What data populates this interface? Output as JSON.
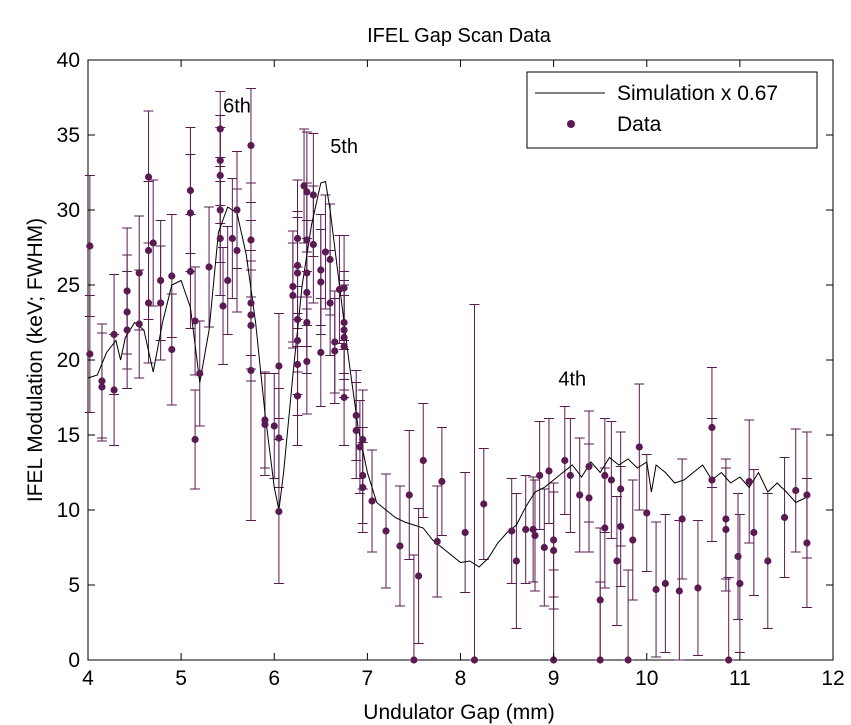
{
  "chart_data": {
    "type": "scatter",
    "title": "IFEL Gap Scan Data",
    "xlabel": "Undulator Gap (mm)",
    "ylabel": "IFEL Modulation (keV; FWHM)",
    "xlim": [
      4,
      12
    ],
    "ylim": [
      0,
      40
    ],
    "xticks": [
      4,
      5,
      6,
      7,
      8,
      9,
      10,
      11,
      12
    ],
    "yticks": [
      0,
      5,
      10,
      15,
      20,
      25,
      30,
      35,
      40
    ],
    "grid": false,
    "legend_position": "top-right",
    "colors": {
      "data": "#5a1a52",
      "simulation": "#000000",
      "errorbar": "#5a1a52"
    },
    "annotations": [
      {
        "text": "6th",
        "x": 5.6,
        "y": 36.5
      },
      {
        "text": "5th",
        "x": 6.75,
        "y": 33.8
      },
      {
        "text": "4th",
        "x": 9.2,
        "y": 18.3
      }
    ],
    "series": [
      {
        "name": "Simulation x 0.67",
        "kind": "line",
        "points": [
          [
            4.0,
            18.8
          ],
          [
            4.1,
            19.0
          ],
          [
            4.2,
            20.5
          ],
          [
            4.3,
            21.3
          ],
          [
            4.35,
            20.0
          ],
          [
            4.4,
            21.5
          ],
          [
            4.5,
            22.5
          ],
          [
            4.6,
            22.0
          ],
          [
            4.7,
            19.2
          ],
          [
            4.8,
            22.5
          ],
          [
            4.9,
            25.0
          ],
          [
            5.0,
            25.3
          ],
          [
            5.1,
            23.5
          ],
          [
            5.2,
            18.5
          ],
          [
            5.3,
            22.0
          ],
          [
            5.4,
            28.5
          ],
          [
            5.5,
            30.2
          ],
          [
            5.6,
            29.8
          ],
          [
            5.7,
            27.0
          ],
          [
            5.8,
            22.5
          ],
          [
            5.9,
            16.5
          ],
          [
            6.0,
            11.5
          ],
          [
            6.05,
            10.0
          ],
          [
            6.1,
            12.5
          ],
          [
            6.2,
            19.0
          ],
          [
            6.3,
            25.0
          ],
          [
            6.4,
            29.0
          ],
          [
            6.5,
            31.8
          ],
          [
            6.55,
            31.9
          ],
          [
            6.6,
            30.0
          ],
          [
            6.7,
            25.0
          ],
          [
            6.8,
            20.0
          ],
          [
            6.9,
            15.5
          ],
          [
            7.0,
            12.5
          ],
          [
            7.1,
            10.5
          ],
          [
            7.2,
            10.0
          ],
          [
            7.3,
            9.5
          ],
          [
            7.4,
            9.2
          ],
          [
            7.5,
            9.0
          ],
          [
            7.6,
            8.8
          ],
          [
            7.7,
            8.0
          ],
          [
            7.8,
            7.5
          ],
          [
            7.9,
            7.0
          ],
          [
            8.0,
            6.5
          ],
          [
            8.1,
            6.6
          ],
          [
            8.2,
            6.2
          ],
          [
            8.3,
            6.8
          ],
          [
            8.4,
            7.8
          ],
          [
            8.5,
            8.5
          ],
          [
            8.6,
            9.0
          ],
          [
            8.7,
            10.2
          ],
          [
            8.8,
            11.2
          ],
          [
            8.9,
            11.5
          ],
          [
            9.0,
            12.0
          ],
          [
            9.1,
            12.5
          ],
          [
            9.2,
            13.0
          ],
          [
            9.3,
            12.2
          ],
          [
            9.4,
            13.2
          ],
          [
            9.5,
            12.5
          ],
          [
            9.6,
            13.5
          ],
          [
            9.7,
            13.0
          ],
          [
            9.8,
            13.4
          ],
          [
            9.9,
            12.8
          ],
          [
            10.0,
            13.2
          ],
          [
            10.05,
            11.2
          ],
          [
            10.1,
            13.0
          ],
          [
            10.2,
            12.5
          ],
          [
            10.3,
            11.8
          ],
          [
            10.4,
            12.0
          ],
          [
            10.5,
            12.5
          ],
          [
            10.6,
            13.0
          ],
          [
            10.7,
            12.0
          ],
          [
            10.8,
            12.5
          ],
          [
            10.9,
            11.8
          ],
          [
            11.0,
            12.2
          ],
          [
            11.1,
            11.5
          ],
          [
            11.2,
            12.5
          ],
          [
            11.3,
            11.2
          ],
          [
            11.4,
            11.8
          ],
          [
            11.5,
            11.2
          ],
          [
            11.6,
            10.5
          ],
          [
            11.7,
            10.8
          ]
        ]
      },
      {
        "name": "Data",
        "kind": "scatter_errorbar",
        "points": [
          {
            "x": 4.02,
            "y": 27.6,
            "err": 4.7
          },
          {
            "x": 4.02,
            "y": 20.4,
            "err": 3.9
          },
          {
            "x": 4.15,
            "y": 18.6,
            "err": 3.8
          },
          {
            "x": 4.15,
            "y": 18.2,
            "err": 3.6
          },
          {
            "x": 4.28,
            "y": 21.7,
            "err": 4.0
          },
          {
            "x": 4.28,
            "y": 18.0,
            "err": 3.7
          },
          {
            "x": 4.42,
            "y": 24.6,
            "err": 4.2
          },
          {
            "x": 4.42,
            "y": 23.2,
            "err": 3.8
          },
          {
            "x": 4.42,
            "y": 22.0,
            "err": 3.9
          },
          {
            "x": 4.55,
            "y": 25.8,
            "err": 3.8
          },
          {
            "x": 4.55,
            "y": 22.4,
            "err": 3.6
          },
          {
            "x": 4.65,
            "y": 32.2,
            "err": 4.4
          },
          {
            "x": 4.65,
            "y": 27.3,
            "err": 4.6
          },
          {
            "x": 4.65,
            "y": 23.8,
            "err": 4.0
          },
          {
            "x": 4.7,
            "y": 27.8,
            "err": 4.2
          },
          {
            "x": 4.78,
            "y": 25.3,
            "err": 4.0
          },
          {
            "x": 4.78,
            "y": 23.8,
            "err": 3.8
          },
          {
            "x": 4.9,
            "y": 25.6,
            "err": 4.1
          },
          {
            "x": 4.9,
            "y": 20.7,
            "err": 3.7
          },
          {
            "x": 5.1,
            "y": 31.3,
            "err": 4.2
          },
          {
            "x": 5.1,
            "y": 29.8,
            "err": 3.9
          },
          {
            "x": 5.1,
            "y": 25.9,
            "err": 3.8
          },
          {
            "x": 5.15,
            "y": 22.6,
            "err": 3.6
          },
          {
            "x": 5.15,
            "y": 14.7,
            "err": 3.3
          },
          {
            "x": 5.2,
            "y": 19.1,
            "err": 3.5
          },
          {
            "x": 5.3,
            "y": 26.2,
            "err": 4.0
          },
          {
            "x": 5.42,
            "y": 35.4,
            "err": 2.5
          },
          {
            "x": 5.42,
            "y": 33.3,
            "err": 3.0
          },
          {
            "x": 5.42,
            "y": 32.3,
            "err": 3.2
          },
          {
            "x": 5.42,
            "y": 30.0,
            "err": 3.5
          },
          {
            "x": 5.42,
            "y": 28.1,
            "err": 3.8
          },
          {
            "x": 5.45,
            "y": 23.6,
            "err": 3.9
          },
          {
            "x": 5.5,
            "y": 25.3,
            "err": 3.6
          },
          {
            "x": 5.55,
            "y": 28.1,
            "err": 4.0
          },
          {
            "x": 5.6,
            "y": 30.0,
            "err": 3.9
          },
          {
            "x": 5.6,
            "y": 27.3,
            "err": 4.1
          },
          {
            "x": 5.75,
            "y": 34.3,
            "err": 3.8
          },
          {
            "x": 5.75,
            "y": 28.0,
            "err": 3.8
          },
          {
            "x": 5.75,
            "y": 23.8,
            "err": 3.5
          },
          {
            "x": 5.75,
            "y": 23.0,
            "err": 3.6
          },
          {
            "x": 5.75,
            "y": 22.3,
            "err": 3.7
          },
          {
            "x": 5.75,
            "y": 19.3,
            "err": 10.0
          },
          {
            "x": 5.9,
            "y": 16.0,
            "err": 3.2
          },
          {
            "x": 5.9,
            "y": 15.7,
            "err": 3.4
          },
          {
            "x": 6.0,
            "y": 15.6,
            "err": 3.5
          },
          {
            "x": 6.05,
            "y": 14.8,
            "err": 3.3
          },
          {
            "x": 6.05,
            "y": 9.9,
            "err": 4.8
          },
          {
            "x": 6.05,
            "y": 19.6,
            "err": 3.5
          },
          {
            "x": 6.2,
            "y": 24.9,
            "err": 3.7
          },
          {
            "x": 6.2,
            "y": 24.3,
            "err": 3.5
          },
          {
            "x": 6.25,
            "y": 28.1,
            "err": 3.9
          },
          {
            "x": 6.25,
            "y": 26.3,
            "err": 3.6
          },
          {
            "x": 6.25,
            "y": 25.8,
            "err": 3.7
          },
          {
            "x": 6.25,
            "y": 22.7,
            "err": 3.5
          },
          {
            "x": 6.25,
            "y": 21.3,
            "err": 3.6
          },
          {
            "x": 6.25,
            "y": 19.7,
            "err": 3.4
          },
          {
            "x": 6.25,
            "y": 17.6,
            "err": 3.3
          },
          {
            "x": 6.32,
            "y": 31.6,
            "err": 3.8
          },
          {
            "x": 6.35,
            "y": 31.2,
            "err": 4.0
          },
          {
            "x": 6.35,
            "y": 28.0,
            "err": 3.8
          },
          {
            "x": 6.35,
            "y": 25.8,
            "err": 3.5
          },
          {
            "x": 6.35,
            "y": 24.5,
            "err": 3.6
          },
          {
            "x": 6.35,
            "y": 22.5,
            "err": 3.4
          },
          {
            "x": 6.35,
            "y": 19.9,
            "err": 3.5
          },
          {
            "x": 6.42,
            "y": 31.0,
            "err": 4.1
          },
          {
            "x": 6.42,
            "y": 27.7,
            "err": 3.9
          },
          {
            "x": 6.5,
            "y": 26.0,
            "err": 3.7
          },
          {
            "x": 6.5,
            "y": 25.2,
            "err": 3.5
          },
          {
            "x": 6.5,
            "y": 20.5,
            "err": 3.6
          },
          {
            "x": 6.55,
            "y": 27.2,
            "err": 3.8
          },
          {
            "x": 6.6,
            "y": 26.7,
            "err": 3.7
          },
          {
            "x": 6.6,
            "y": 23.8,
            "err": 3.5
          },
          {
            "x": 6.65,
            "y": 21.2,
            "err": 3.4
          },
          {
            "x": 6.65,
            "y": 20.6,
            "err": 3.5
          },
          {
            "x": 6.7,
            "y": 24.7,
            "err": 3.6
          },
          {
            "x": 6.75,
            "y": 24.8,
            "err": 3.5
          },
          {
            "x": 6.75,
            "y": 22.5,
            "err": 3.4
          },
          {
            "x": 6.75,
            "y": 22.0,
            "err": 3.3
          },
          {
            "x": 6.75,
            "y": 21.5,
            "err": 3.5
          },
          {
            "x": 6.75,
            "y": 20.9,
            "err": 3.4
          },
          {
            "x": 6.75,
            "y": 17.5,
            "err": 3.2
          },
          {
            "x": 6.88,
            "y": 16.3,
            "err": 3.0
          },
          {
            "x": 6.88,
            "y": 15.3,
            "err": 3.2
          },
          {
            "x": 6.92,
            "y": 14.2,
            "err": 3.1
          },
          {
            "x": 6.95,
            "y": 14.7,
            "err": 3.3
          },
          {
            "x": 6.95,
            "y": 12.3,
            "err": 3.2
          },
          {
            "x": 6.95,
            "y": 11.5,
            "err": 3.0
          },
          {
            "x": 7.05,
            "y": 10.6,
            "err": 3.4
          },
          {
            "x": 7.2,
            "y": 8.6,
            "err": 3.8
          },
          {
            "x": 7.35,
            "y": 7.6,
            "err": 4.0
          },
          {
            "x": 7.45,
            "y": 11.0,
            "err": 4.3
          },
          {
            "x": 7.5,
            "y": 0.0,
            "err": 7.0
          },
          {
            "x": 7.55,
            "y": 5.6,
            "err": 4.5
          },
          {
            "x": 7.6,
            "y": 13.3,
            "err": 3.8
          },
          {
            "x": 7.75,
            "y": 7.9,
            "err": 3.7
          },
          {
            "x": 7.8,
            "y": 11.9,
            "err": 3.6
          },
          {
            "x": 8.05,
            "y": 8.5,
            "err": 4.0
          },
          {
            "x": 8.15,
            "y": 0.0,
            "err": 23.7
          },
          {
            "x": 8.25,
            "y": 10.4,
            "err": 3.7
          },
          {
            "x": 8.55,
            "y": 8.6,
            "err": 3.5
          },
          {
            "x": 8.6,
            "y": 6.6,
            "err": 4.5
          },
          {
            "x": 8.7,
            "y": 8.7,
            "err": 3.6
          },
          {
            "x": 8.78,
            "y": 8.7,
            "err": 3.5
          },
          {
            "x": 8.8,
            "y": 8.3,
            "err": 3.7
          },
          {
            "x": 8.85,
            "y": 12.3,
            "err": 3.6
          },
          {
            "x": 8.9,
            "y": 7.5,
            "err": 3.9
          },
          {
            "x": 8.95,
            "y": 12.6,
            "err": 3.5
          },
          {
            "x": 9.0,
            "y": 8.0,
            "err": 3.8
          },
          {
            "x": 9.0,
            "y": 0.0,
            "err": 6.0
          },
          {
            "x": 9.0,
            "y": 7.3,
            "err": 3.9
          },
          {
            "x": 9.12,
            "y": 13.3,
            "err": 3.6
          },
          {
            "x": 9.18,
            "y": 12.3,
            "err": 3.8
          },
          {
            "x": 9.28,
            "y": 11.0,
            "err": 3.8
          },
          {
            "x": 9.38,
            "y": 10.8,
            "err": 3.6
          },
          {
            "x": 9.38,
            "y": 12.9,
            "err": 3.7
          },
          {
            "x": 9.5,
            "y": 4.0,
            "err": 4.8
          },
          {
            "x": 9.5,
            "y": 0.0,
            "err": 5.2
          },
          {
            "x": 9.55,
            "y": 12.3,
            "err": 3.8
          },
          {
            "x": 9.55,
            "y": 8.8,
            "err": 4.0
          },
          {
            "x": 9.62,
            "y": 12.0,
            "err": 3.9
          },
          {
            "x": 9.68,
            "y": 6.6,
            "err": 4.3
          },
          {
            "x": 9.72,
            "y": 11.4,
            "err": 3.8
          },
          {
            "x": 9.72,
            "y": 8.9,
            "err": 4.0
          },
          {
            "x": 9.8,
            "y": 0.0,
            "err": 6.0
          },
          {
            "x": 9.85,
            "y": 8.0,
            "err": 4.0
          },
          {
            "x": 9.92,
            "y": 14.2,
            "err": 4.2
          },
          {
            "x": 10.0,
            "y": 9.8,
            "err": 3.9
          },
          {
            "x": 10.1,
            "y": 4.7,
            "err": 4.5
          },
          {
            "x": 10.2,
            "y": 5.1,
            "err": 4.6
          },
          {
            "x": 10.35,
            "y": 4.6,
            "err": 4.7
          },
          {
            "x": 10.38,
            "y": 9.4,
            "err": 4.0
          },
          {
            "x": 10.55,
            "y": 4.8,
            "err": 4.5
          },
          {
            "x": 10.7,
            "y": 15.5,
            "err": 4.0
          },
          {
            "x": 10.7,
            "y": 12.0,
            "err": 4.1
          },
          {
            "x": 10.85,
            "y": 9.4,
            "err": 4.0
          },
          {
            "x": 10.85,
            "y": 8.7,
            "err": 4.1
          },
          {
            "x": 10.88,
            "y": 0.0,
            "err": 5.5
          },
          {
            "x": 10.98,
            "y": 6.9,
            "err": 4.2
          },
          {
            "x": 11.0,
            "y": 5.1,
            "err": 4.6
          },
          {
            "x": 11.1,
            "y": 11.9,
            "err": 4.1
          },
          {
            "x": 11.15,
            "y": 8.5,
            "err": 4.2
          },
          {
            "x": 11.3,
            "y": 6.6,
            "err": 4.5
          },
          {
            "x": 11.48,
            "y": 9.5,
            "err": 4.0
          },
          {
            "x": 11.6,
            "y": 11.3,
            "err": 4.1
          },
          {
            "x": 11.72,
            "y": 11.0,
            "err": 4.2
          },
          {
            "x": 11.72,
            "y": 7.8,
            "err": 4.3
          }
        ]
      }
    ]
  }
}
